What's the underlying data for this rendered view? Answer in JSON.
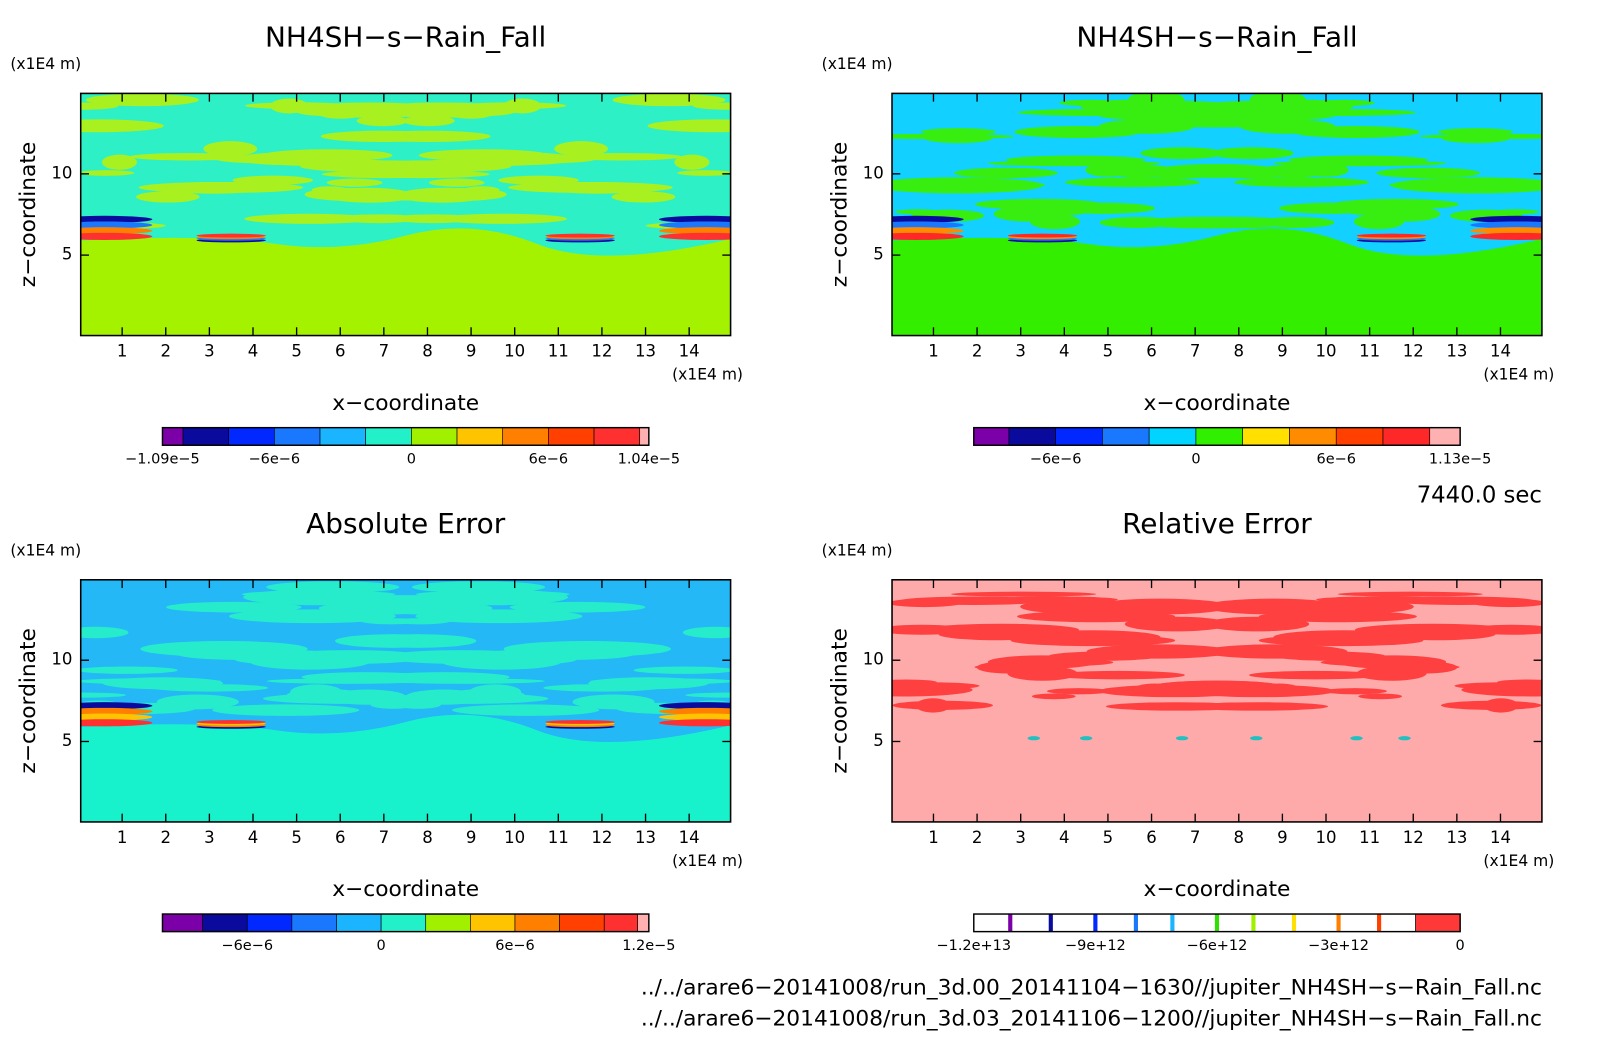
{
  "chart_data": [
    {
      "type": "contour",
      "title": "NH4SH−s−Rain_Fall",
      "xlabel": "x−coordinate",
      "ylabel": "z−coordinate",
      "xunit": "(x1E4 m)",
      "yunit": "(x1E4 m)",
      "xlim": [
        0.05,
        14.95
      ],
      "ylim": [
        0.05,
        14.95
      ],
      "xticks": [
        1,
        2,
        3,
        4,
        5,
        6,
        7,
        8,
        9,
        10,
        11,
        12,
        13,
        14
      ],
      "yticks": [
        5,
        10
      ],
      "colorbar": {
        "levels": [
          -1.09e-05,
          -1e-05,
          -8e-06,
          -6e-06,
          -4e-06,
          -2e-06,
          0,
          2e-06,
          4e-06,
          6e-06,
          8e-06,
          1e-05,
          1.04e-05
        ],
        "colors": [
          "#7b00a8",
          "#0a0a9c",
          "#0028ff",
          "#1a78ff",
          "#1ab4ff",
          "#22f0c8",
          "#a0f000",
          "#ffc400",
          "#ff8000",
          "#ff4000",
          "#ff3030",
          "#ffb0b0"
        ],
        "ticks": [
          {
            "value": -1.09e-05,
            "label": "−1.09e−5"
          },
          {
            "value": -6e-06,
            "label": "−6e−6"
          },
          0,
          {
            "value": 6e-06,
            "label": "6e−6"
          },
          {
            "value": 1.04e-05,
            "label": "1.04e−5"
          }
        ]
      }
    },
    {
      "type": "contour",
      "title": "NH4SH−s−Rain_Fall",
      "xlabel": "x−coordinate",
      "ylabel": "z−coordinate",
      "xunit": "(x1E4 m)",
      "yunit": "(x1E4 m)",
      "xlim": [
        0.05,
        14.95
      ],
      "ylim": [
        0.05,
        14.95
      ],
      "xticks": [
        1,
        2,
        3,
        4,
        5,
        6,
        7,
        8,
        9,
        10,
        11,
        12,
        13,
        14
      ],
      "yticks": [
        5,
        10
      ],
      "colorbar": {
        "levels": [
          -9.5e-06,
          -8e-06,
          -6e-06,
          -4e-06,
          -2e-06,
          0,
          2e-06,
          4e-06,
          6e-06,
          8e-06,
          1e-05,
          1.13e-05
        ],
        "colors": [
          "#7b00a8",
          "#0a0a9c",
          "#0028ff",
          "#1a78ff",
          "#00d4ff",
          "#30f000",
          "#ffe000",
          "#ff8c00",
          "#ff4000",
          "#ff2828",
          "#ffb0b0"
        ],
        "ticks": [
          {
            "value": -6e-06,
            "label": "−6e−6"
          },
          0,
          {
            "value": 6e-06,
            "label": "6e−6"
          },
          {
            "value": 1.13e-05,
            "label": "1.13e−5"
          }
        ]
      }
    },
    {
      "type": "contour",
      "title": "Absolute Error",
      "xlabel": "x−coordinate",
      "ylabel": "z−coordinate",
      "xunit": "(x1E4 m)",
      "yunit": "(x1E4 m)",
      "xlim": [
        0.05,
        14.95
      ],
      "ylim": [
        0.05,
        14.95
      ],
      "xticks": [
        1,
        2,
        3,
        4,
        5,
        6,
        7,
        8,
        9,
        10,
        11,
        12,
        13,
        14
      ],
      "yticks": [
        5,
        10
      ],
      "colorbar": {
        "levels": [
          -9.8e-06,
          -8e-06,
          -6e-06,
          -4e-06,
          -2e-06,
          0,
          2e-06,
          4e-06,
          6e-06,
          8e-06,
          1e-05,
          1.15e-05,
          1.2e-05
        ],
        "colors": [
          "#7b00a8",
          "#0a0a9c",
          "#0028ff",
          "#1a78ff",
          "#1ab4ff",
          "#22f0c8",
          "#a0f000",
          "#ffc400",
          "#ff8000",
          "#ff4000",
          "#ff3030",
          "#ffb0b0"
        ],
        "ticks": [
          {
            "value": -6e-06,
            "label": "−6e−6"
          },
          0,
          {
            "value": 6e-06,
            "label": "6e−6"
          },
          {
            "value": 1.2e-05,
            "label": "1.2e−5"
          }
        ]
      }
    },
    {
      "type": "contour",
      "title": "Relative Error",
      "xlabel": "x−coordinate",
      "ylabel": "z−coordinate",
      "xunit": "(x1E4 m)",
      "yunit": "(x1E4 m)",
      "xlim": [
        0.05,
        14.95
      ],
      "ylim": [
        0.05,
        14.95
      ],
      "xticks": [
        1,
        2,
        3,
        4,
        5,
        6,
        7,
        8,
        9,
        10,
        11,
        12,
        13,
        14
      ],
      "yticks": [
        5,
        10
      ],
      "colorbar": {
        "levels": [
          -12000000000000,
          -1100000000000,
          0
        ],
        "colors": [
          "#ffffff",
          "#ff3838"
        ],
        "lines": [
          {
            "value": -11100000000000,
            "color": "#7b00a8"
          },
          {
            "value": -10100000000000,
            "color": "#0a0a9c"
          },
          {
            "value": -9000000000000,
            "color": "#0028ff"
          },
          {
            "value": -8000000000000,
            "color": "#1a78ff"
          },
          {
            "value": -7100000000000,
            "color": "#1ab4ff"
          },
          {
            "value": -6000000000000,
            "color": "#30e000"
          },
          {
            "value": -5100000000000,
            "color": "#a0f000"
          },
          {
            "value": -4100000000000,
            "color": "#ffe000"
          },
          {
            "value": -3000000000000,
            "color": "#ff8000"
          },
          {
            "value": -2000000000000,
            "color": "#ff4000"
          }
        ],
        "ticks": [
          {
            "value": -12000000000000,
            "label": "−1.2e+13"
          },
          {
            "value": -9000000000000,
            "label": "−9e+12"
          },
          {
            "value": -6000000000000,
            "label": "−6e+12"
          },
          {
            "value": -3000000000000,
            "label": "−3e+12"
          },
          0
        ]
      }
    }
  ],
  "time_label": "7440.0 sec",
  "files": [
    "../../arare6−20141008/run_3d.00_20141104−1630//jupiter_NH4SH−s−Rain_Fall.nc",
    "../../arare6−20141008/run_3d.03_20141106−1200//jupiter_NH4SH−s−Rain_Fall.nc"
  ]
}
